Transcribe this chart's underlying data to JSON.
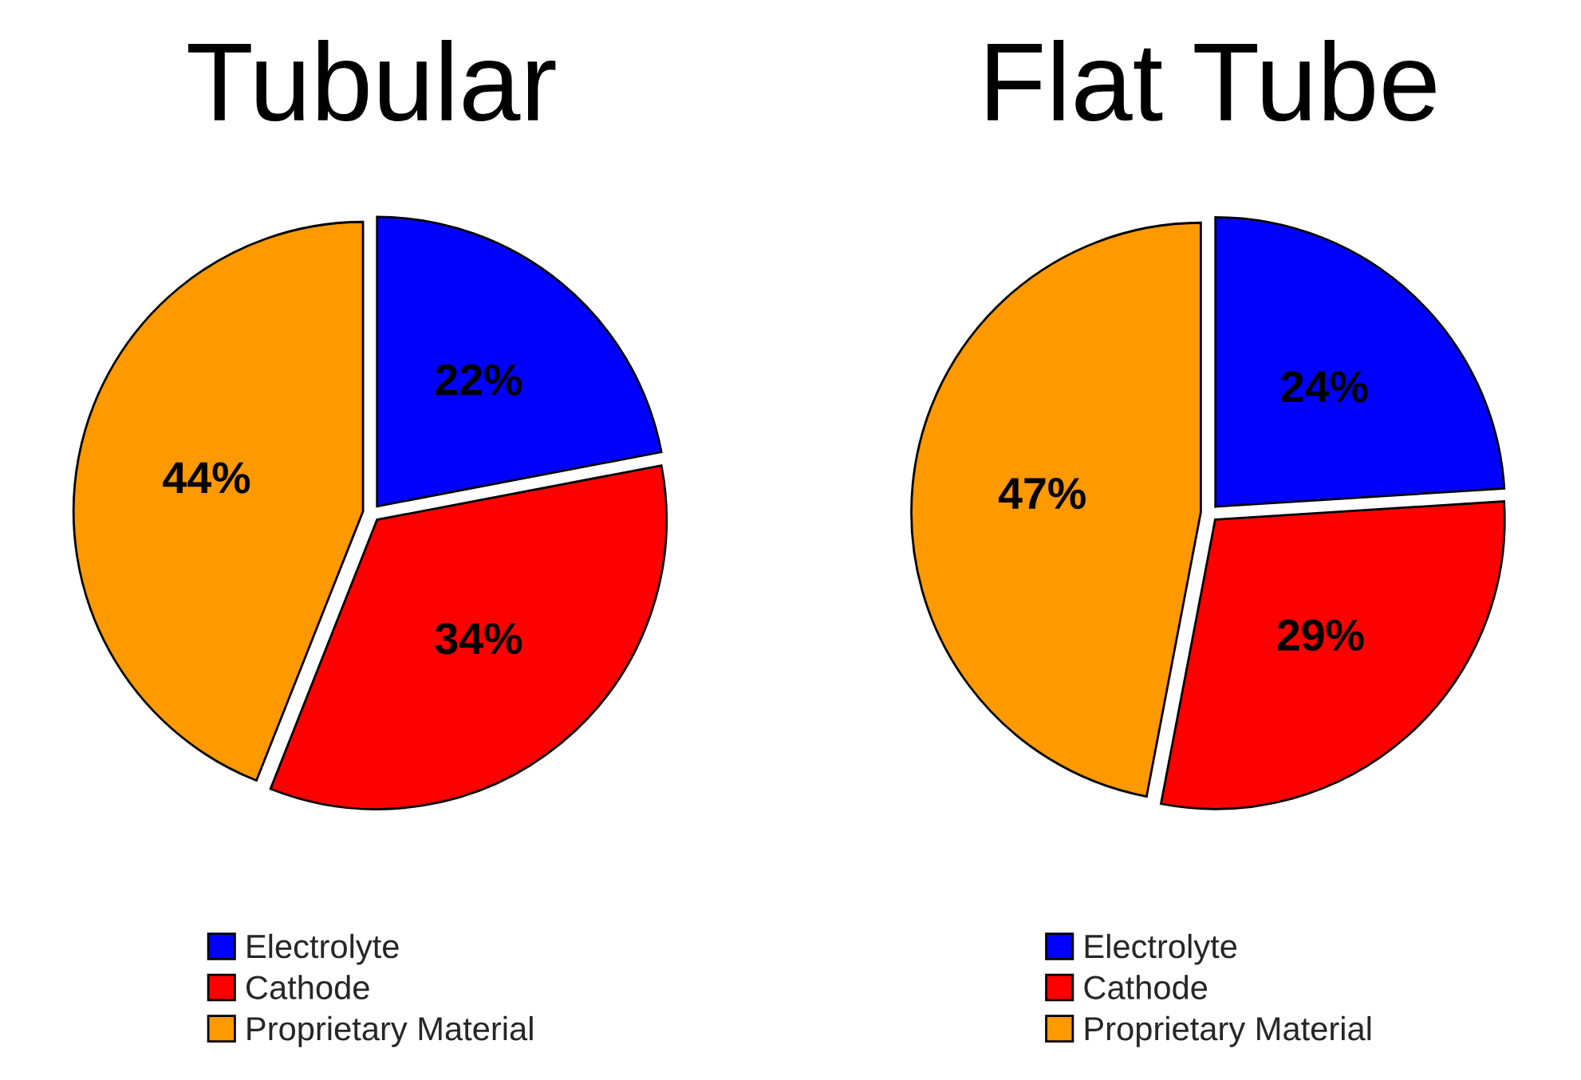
{
  "chart_data": [
    {
      "type": "pie",
      "title": "Tubular",
      "categories": [
        "Electrolyte",
        "Cathode",
        "Proprietary Material"
      ],
      "values": [
        22,
        34,
        44
      ],
      "value_labels": [
        "22%",
        "34%",
        "44%"
      ],
      "colors": [
        "#0000ff",
        "#ff0000",
        "#ff9900"
      ],
      "legend": "bottom"
    },
    {
      "type": "pie",
      "title": "Flat Tube",
      "categories": [
        "Electrolyte",
        "Cathode",
        "Proprietary Material"
      ],
      "values": [
        24,
        29,
        47
      ],
      "value_labels": [
        "24%",
        "29%",
        "47%"
      ],
      "colors": [
        "#0000ff",
        "#ff0000",
        "#ff9900"
      ],
      "legend": "bottom"
    }
  ]
}
